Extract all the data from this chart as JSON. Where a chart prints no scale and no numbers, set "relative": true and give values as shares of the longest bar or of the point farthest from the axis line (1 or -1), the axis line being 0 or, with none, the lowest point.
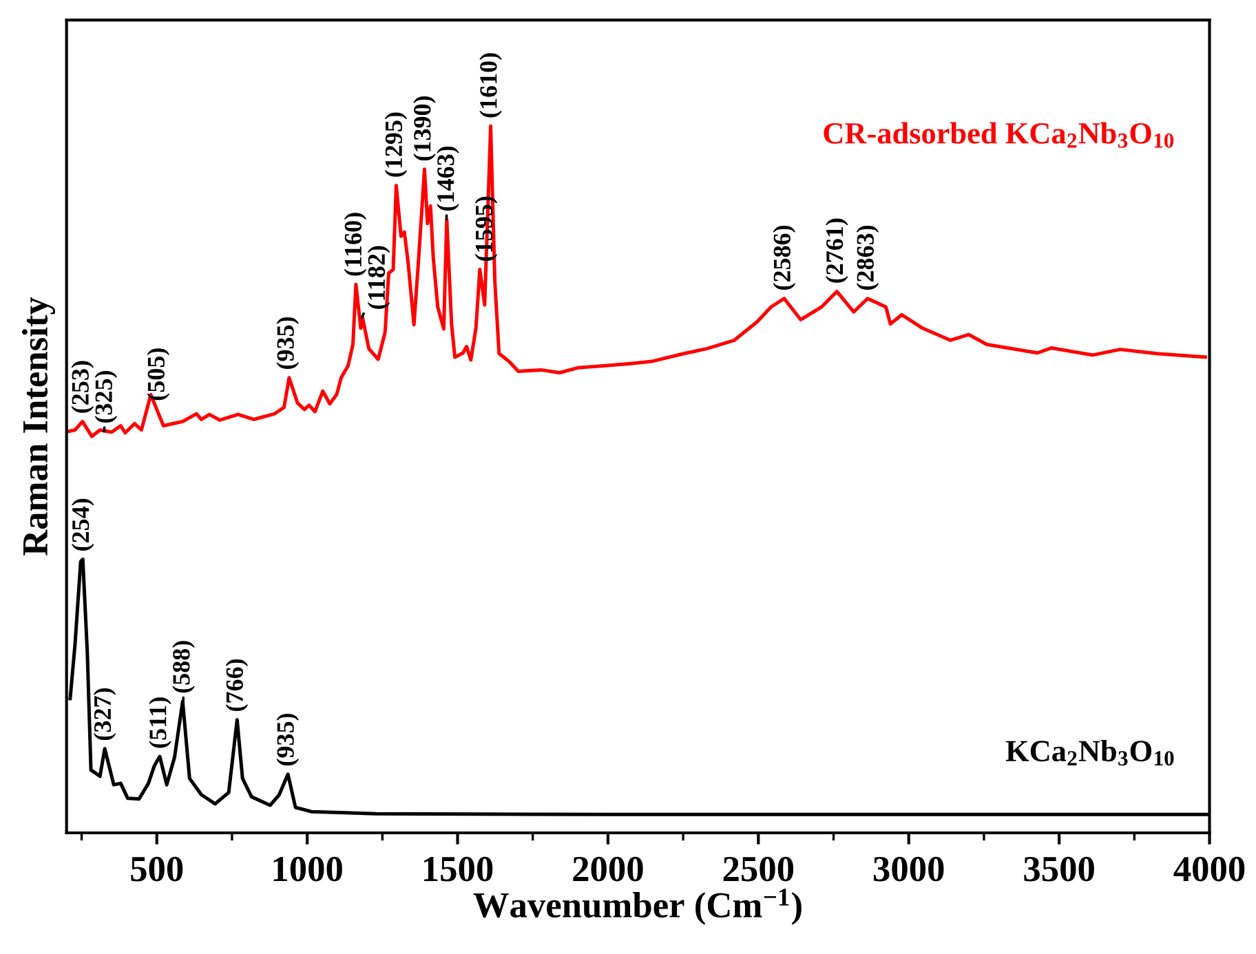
{
  "chart_data": {
    "type": "line",
    "relative": true,
    "xlabel": "Wavenumber (Cm$^{−1}$)",
    "ylabel": "Raman Intensity",
    "xlim": [
      200,
      4000
    ],
    "xticks": [
      500,
      1000,
      1500,
      2000,
      2500,
      3000,
      3500,
      4000
    ],
    "grid": false,
    "legend": false,
    "marker": "none",
    "line_style": "solid",
    "series": [
      {
        "name": "KCa$_{2}$Nb$_{3}$O$_{10}$",
        "color": "#000000",
        "x": [
          212,
          228,
          247,
          254,
          269,
          281,
          311,
          327,
          357,
          380,
          403,
          441,
          472,
          492,
          510,
          533,
          559,
          586,
          609,
          648,
          694,
          739,
          767,
          785,
          815,
          877,
          907,
          936,
          961,
          1014,
          1228,
          2000,
          3000,
          4000
        ],
        "values": [
          0.19,
          0.266,
          0.384,
          0.387,
          0.255,
          0.089,
          0.08,
          0.119,
          0.068,
          0.07,
          0.049,
          0.048,
          0.07,
          0.095,
          0.108,
          0.068,
          0.107,
          0.186,
          0.077,
          0.054,
          0.041,
          0.057,
          0.16,
          0.077,
          0.051,
          0.039,
          0.054,
          0.083,
          0.036,
          0.03,
          0.027,
          0.026,
          0.026,
          0.026
        ]
      },
      {
        "name": "CR-adsorbed KCa$_{2}$Nb$_{3}$O$_{10}$",
        "color": "#ff0000",
        "x": [
          205,
          228,
          253,
          284,
          311,
          350,
          380,
          395,
          426,
          449,
          480,
          522,
          586,
          632,
          648,
          675,
          709,
          770,
          823,
          892,
          923,
          940,
          968,
          991,
          1006,
          1026,
          1052,
          1075,
          1098,
          1113,
          1136,
          1152,
          1162,
          1178,
          1184,
          1205,
          1236,
          1259,
          1271,
          1286,
          1296,
          1312,
          1323,
          1335,
          1355,
          1370,
          1390,
          1400,
          1410,
          1419,
          1434,
          1454,
          1464,
          1480,
          1491,
          1518,
          1530,
          1544,
          1561,
          1574,
          1590,
          1610,
          1624,
          1638,
          1671,
          1702,
          1778,
          1839,
          1900,
          1992,
          2076,
          2145,
          2252,
          2328,
          2420,
          2496,
          2542,
          2586,
          2641,
          2710,
          2761,
          2817,
          2863,
          2924,
          2939,
          2977,
          3046,
          3138,
          3199,
          3260,
          3428,
          3474,
          3611,
          3703,
          3825,
          3986
        ],
        "values": [
          0.568,
          0.57,
          0.582,
          0.561,
          0.57,
          0.567,
          0.576,
          0.566,
          0.579,
          0.57,
          0.62,
          0.576,
          0.582,
          0.593,
          0.585,
          0.592,
          0.584,
          0.592,
          0.585,
          0.593,
          0.602,
          0.644,
          0.608,
          0.599,
          0.605,
          0.596,
          0.625,
          0.607,
          0.62,
          0.644,
          0.661,
          0.691,
          0.776,
          0.714,
          0.729,
          0.685,
          0.67,
          0.708,
          0.792,
          0.797,
          0.916,
          0.844,
          0.85,
          0.809,
          0.719,
          0.809,
          0.939,
          0.862,
          0.887,
          0.815,
          0.744,
          0.713,
          0.868,
          0.72,
          0.673,
          0.679,
          0.688,
          0.669,
          0.714,
          0.797,
          0.747,
          1.0,
          0.779,
          0.678,
          0.667,
          0.653,
          0.655,
          0.651,
          0.658,
          0.661,
          0.664,
          0.667,
          0.678,
          0.685,
          0.697,
          0.723,
          0.744,
          0.756,
          0.726,
          0.744,
          0.766,
          0.737,
          0.756,
          0.744,
          0.72,
          0.733,
          0.714,
          0.697,
          0.705,
          0.691,
          0.679,
          0.686,
          0.676,
          0.684,
          0.678,
          0.673
        ]
      }
    ],
    "annotations": [
      {
        "text": "(254)",
        "x": 254,
        "y": 0.387
      },
      {
        "text": "(327)",
        "x": 327,
        "y": 0.119
      },
      {
        "text": "(511)",
        "x": 511,
        "y": 0.108
      },
      {
        "text": "(588)",
        "x": 588,
        "y": 0.186
      },
      {
        "text": "(766)",
        "x": 766,
        "y": 0.16
      },
      {
        "text": "(935)",
        "x": 935,
        "y": 0.083
      },
      {
        "text": "(253)",
        "x": 253,
        "y": 0.582
      },
      {
        "text": "(505)",
        "x": 505,
        "y": 0.6
      },
      {
        "text": "(325)",
        "x": 325,
        "y": 0.568
      },
      {
        "text": "(935)",
        "x": 935,
        "y": 0.644
      },
      {
        "text": "(1160)",
        "x": 1160,
        "y": 0.776
      },
      {
        "text": "(1182)",
        "x": 1182,
        "y": 0.729
      },
      {
        "text": "(1295)",
        "x": 1295,
        "y": 0.916
      },
      {
        "text": "(1390)",
        "x": 1390,
        "y": 0.939
      },
      {
        "text": "(1463)",
        "x": 1463,
        "y": 0.868
      },
      {
        "text": "(1595)",
        "x": 1595,
        "y": 0.797
      },
      {
        "text": "(1610)",
        "x": 1610,
        "y": 1.0
      },
      {
        "text": "(2586)",
        "x": 2586,
        "y": 0.756
      },
      {
        "text": "(2761)",
        "x": 2761,
        "y": 0.766
      },
      {
        "text": "(2863)",
        "x": 2863,
        "y": 0.756
      }
    ]
  }
}
